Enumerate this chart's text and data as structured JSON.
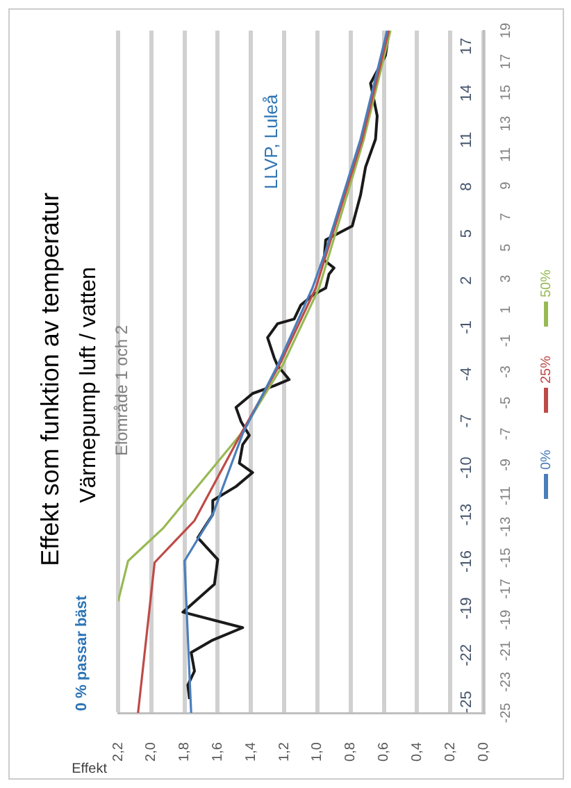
{
  "chart_data": {
    "type": "line",
    "title": "Effekt som funktion av temperatur",
    "subtitle": "Värmepump luft / vatten",
    "xlabel": "Effekt",
    "annotations": [
      "Elområde 1 och 2",
      "0 % passar bäst",
      "LLVP, Luleå"
    ],
    "xlim": [
      2.2,
      0
    ],
    "xticks": [
      {
        "value": 0,
        "label": "0,0"
      },
      {
        "value": 0.2,
        "label": "0,2"
      },
      {
        "value": 0.4,
        "label": "0,4"
      },
      {
        "value": 0.6,
        "label": "0,6"
      },
      {
        "value": 0.8,
        "label": "0,8"
      },
      {
        "value": 1,
        "label": "1,0"
      },
      {
        "value": 1.2,
        "label": "1,2"
      },
      {
        "value": 1.4,
        "label": "1,4"
      },
      {
        "value": 1.6,
        "label": "1,6"
      },
      {
        "value": 1.8,
        "label": "1,8"
      },
      {
        "value": 2,
        "label": "2,0"
      },
      {
        "value": 2.2,
        "label": "2,2"
      }
    ],
    "ylim": [
      -25,
      19
    ],
    "yticks": [
      -25,
      -23,
      -21,
      -19,
      -17,
      -15,
      -13,
      -11,
      -9,
      -7,
      -5,
      -3,
      -1,
      1,
      3,
      5,
      7,
      9,
      11,
      13,
      15,
      17,
      19
    ],
    "y2lim": [
      -25.7,
      18
    ],
    "y2ticks": [
      -25,
      -22,
      -19,
      -16,
      -13,
      -10,
      -7,
      -4,
      -1,
      2,
      5,
      8,
      11,
      14,
      17
    ],
    "grid": "x",
    "legend": "right",
    "marker": "none",
    "line_style": "solid",
    "series": [
      {
        "name": "0%",
        "color": "#4a7ebb",
        "x": [
          1.76,
          1.8,
          1.63,
          1.45,
          1.24,
          1.03,
          0.95,
          0.74,
          0.58
        ],
        "values": [
          -25,
          -15.2,
          -12.2,
          -7,
          -2.6,
          2.4,
          4.8,
          12,
          19
        ]
      },
      {
        "name": "25%",
        "color": "#be4b48",
        "x": [
          2.08,
          1.98,
          1.74,
          1.46,
          1.23,
          1.01,
          0.73,
          0.57
        ],
        "values": [
          -25,
          -15.3,
          -12.6,
          -7,
          -2.6,
          2.4,
          12,
          19
        ]
      },
      {
        "name": "50%",
        "color": "#98b954",
        "x": [
          2.2,
          2.14,
          1.93,
          1.46,
          1.21,
          0.99,
          0.72,
          0.56
        ],
        "values": [
          -17.8,
          -15.2,
          -13.1,
          -7,
          -2.6,
          2.4,
          12,
          19
        ]
      },
      {
        "color": "#1a1a1a",
        "x": [
          1.77,
          1.78,
          1.74,
          1.76,
          1.63,
          1.45,
          1.81,
          1.62,
          1.6,
          1.72,
          1.63,
          1.63,
          1.49,
          1.39,
          1.47,
          1.45,
          1.41,
          1.46,
          1.49,
          1.39,
          1.26,
          1.17,
          1.24,
          1.26,
          1.3,
          1.24,
          1.14,
          1.1,
          1.02,
          0.95,
          0.93,
          0.9,
          0.96,
          0.95,
          0.79,
          0.74,
          0.71,
          0.65,
          0.64,
          0.68,
          0.59,
          0.57
        ],
        "values": [
          -24.1,
          -23.2,
          -22.3,
          -21.1,
          -20.3,
          -19.5,
          -18.5,
          -16.7,
          -15.1,
          -13.7,
          -12.2,
          -11.3,
          -10.4,
          -9.5,
          -8.9,
          -7.7,
          -7.1,
          -6.2,
          -5.3,
          -4.4,
          -3.9,
          -3.5,
          -2.6,
          -2.1,
          -0.8,
          0.1,
          0.4,
          1.3,
          2,
          2.4,
          3.3,
          3.7,
          4.2,
          5.5,
          6.4,
          8.4,
          10.2,
          12,
          13.5,
          15.6,
          17.4,
          18.9
        ]
      }
    ]
  }
}
